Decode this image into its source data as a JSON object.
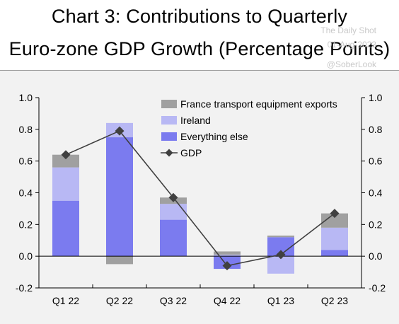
{
  "title": {
    "line1": "Chart 3: Contributions to Quarterly",
    "line2": "Euro-zone GDP Growth (Percentage Points)"
  },
  "watermark": {
    "line1": "The Daily Shot",
    "line2": "01-Aug-2023",
    "line3": "@SoberLook"
  },
  "chart_data": {
    "type": "bar",
    "stacked": true,
    "categories": [
      "Q1 22",
      "Q2 22",
      "Q3 22",
      "Q4 22",
      "Q1 23",
      "Q2 23"
    ],
    "series": [
      {
        "name": "Everything else",
        "values": [
          0.35,
          0.75,
          0.23,
          -0.08,
          0.12,
          0.04
        ],
        "color": "#7b7bef"
      },
      {
        "name": "Ireland",
        "values": [
          0.21,
          0.09,
          0.1,
          0.01,
          -0.11,
          0.14
        ],
        "color": "#b8b8f4"
      },
      {
        "name": "France transport equipment exports",
        "values": [
          0.08,
          -0.05,
          0.04,
          0.02,
          0.01,
          0.09
        ],
        "color": "#a0a0a0"
      }
    ],
    "line_series": {
      "name": "GDP",
      "values": [
        0.64,
        0.79,
        0.37,
        -0.06,
        0.01,
        0.27
      ],
      "color": "#404040"
    },
    "legend_order": [
      "France transport equipment exports",
      "Ireland",
      "Everything else",
      "GDP"
    ],
    "ylim": [
      -0.2,
      1.0
    ],
    "yticks": [
      "-0.2",
      "0.0",
      "0.2",
      "0.4",
      "0.6",
      "0.8",
      "1.0"
    ],
    "axes": "left and right",
    "legend_position": "top-right",
    "grid": false
  }
}
